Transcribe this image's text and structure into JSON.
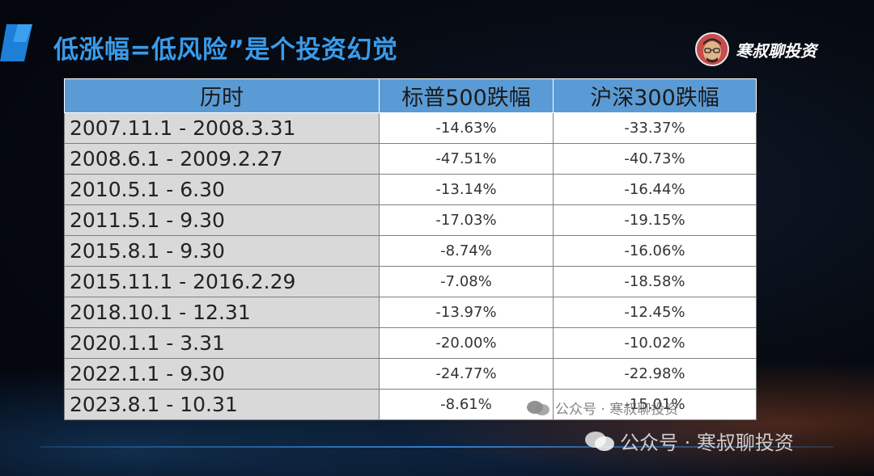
{
  "slide": {
    "title": "低涨幅=低风险”是个投资幻觉",
    "brand_name": "寒叔聊投资"
  },
  "table": {
    "headers": [
      "历时",
      "标普500跌幅",
      "沪深300跌幅"
    ],
    "rows": [
      {
        "period": "2007.11.1 - 2008.3.31",
        "sp500": "-14.63%",
        "csi300": "-33.37%"
      },
      {
        "period": "2008.6.1 - 2009.2.27",
        "sp500": "-47.51%",
        "csi300": "-40.73%"
      },
      {
        "period": "2010.5.1 - 6.30",
        "sp500": "-13.14%",
        "csi300": "-16.44%"
      },
      {
        "period": "2011.5.1 - 9.30",
        "sp500": "-17.03%",
        "csi300": "-19.15%"
      },
      {
        "period": "2015.8.1 - 9.30",
        "sp500": "-8.74%",
        "csi300": "-16.06%"
      },
      {
        "period": "2015.11.1 - 2016.2.29",
        "sp500": "-7.08%",
        "csi300": "-18.58%"
      },
      {
        "period": "2018.10.1 - 12.31",
        "sp500": "-13.97%",
        "csi300": "-12.45%"
      },
      {
        "period": "2020.1.1 - 3.31",
        "sp500": "-20.00%",
        "csi300": "-10.02%"
      },
      {
        "period": "2022.1.1 - 9.30",
        "sp500": "-24.77%",
        "csi300": "-22.98%"
      },
      {
        "period": "2023.8.1 - 10.31",
        "sp500": "-8.61%",
        "csi300": "-15.01%"
      }
    ]
  },
  "watermarks": {
    "small": "公众号 · 寒叔聊投资",
    "large": "公众号 · 寒叔聊投资"
  },
  "colors": {
    "title": "#3a9bea",
    "header_bg": "#5b9bd5",
    "period_bg": "#d9d9d9",
    "value_bg": "#ffffff"
  }
}
